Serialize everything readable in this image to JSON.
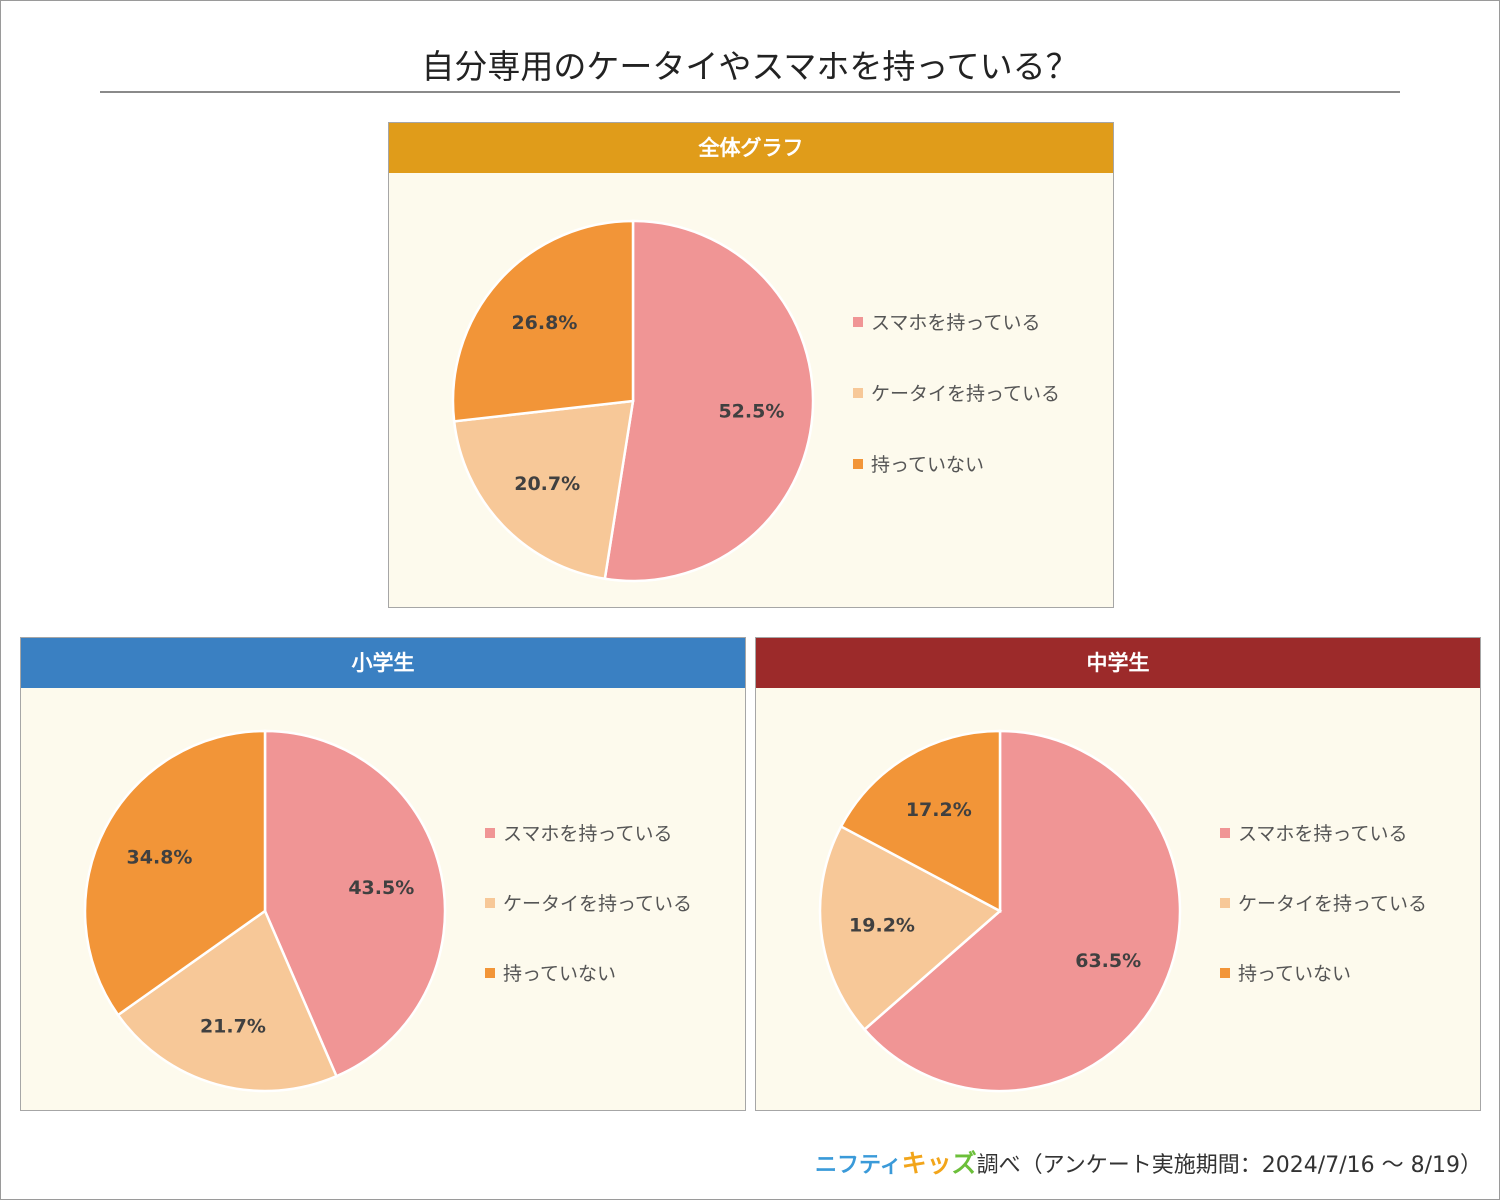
{
  "title": "自分専用のケータイやスマホを持っている？",
  "colors": {
    "smartphone": "#f09595",
    "keitai": "#f7c898",
    "none": "#f29538",
    "panel_bg": "#fdfaed",
    "header_all": "#e09c1a",
    "header_elementary": "#3a80c2",
    "header_junior": "#9c2a2a"
  },
  "footer": {
    "logo_part1": "ニフティ",
    "logo_part2": "キッ",
    "logo_part3": "ズ",
    "text": "調べ（アンケート実施期間：2024/7/16 ～ 8/19）"
  },
  "chart_data": [
    {
      "type": "pie",
      "title": "全体グラフ",
      "categories": [
        "スマホを持っている",
        "ケータイを持っている",
        "持っていない"
      ],
      "values": [
        52.5,
        20.7,
        26.8
      ],
      "labels": [
        "52.5%",
        "20.7%",
        "26.8%"
      ],
      "legend_position": "right"
    },
    {
      "type": "pie",
      "title": "小学生",
      "categories": [
        "スマホを持っている",
        "ケータイを持っている",
        "持っていない"
      ],
      "values": [
        43.5,
        21.7,
        34.8
      ],
      "labels": [
        "43.5%",
        "21.7%",
        "34.8%"
      ],
      "legend_position": "right"
    },
    {
      "type": "pie",
      "title": "中学生",
      "categories": [
        "スマホを持っている",
        "ケータイを持っている",
        "持っていない"
      ],
      "values": [
        63.5,
        19.2,
        17.2
      ],
      "labels": [
        "63.5%",
        "19.2%",
        "17.2%"
      ],
      "legend_position": "right"
    }
  ]
}
